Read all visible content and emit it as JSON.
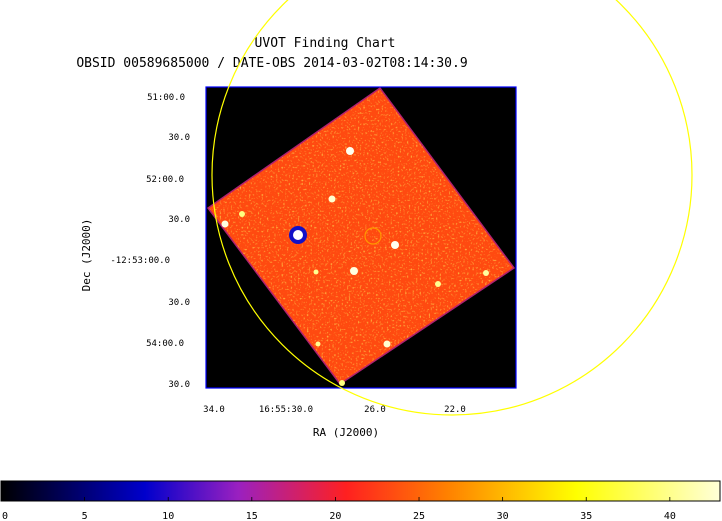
{
  "chart_data": {
    "type": "heatmap",
    "title": "UVOT Finding Chart",
    "subtitle": "OBSID 00589685000 / DATE-OBS 2014-03-02T08:14:30.9",
    "xlabel": "RA (J2000)",
    "ylabel": "Dec (J2000)",
    "x_ticks": [
      "34.0",
      "16:55:30.0",
      "26.0",
      "22.0"
    ],
    "y_ticks": [
      "51:00.0",
      "30.0",
      "52:00.0",
      "30.0",
      "-12:53:00.0",
      "30.0",
      "54:00.0",
      "30.0"
    ],
    "colorbar": {
      "min": 0,
      "max": 43,
      "ticks": [
        0,
        5,
        10,
        15,
        20,
        25,
        30,
        35,
        40
      ],
      "colormap": [
        "#000000",
        "#0000cc",
        "#c02080",
        "#ff2020",
        "#ff8000",
        "#ffff00",
        "#ffffc0"
      ]
    },
    "overlays": [
      {
        "shape": "circle",
        "color": "#ffff00",
        "label": ""
      },
      {
        "shape": "circle",
        "color": "#ff8c00",
        "label": ""
      }
    ],
    "colors": {
      "background_field": "#000000",
      "frame": "#0000ff",
      "field_mid": "#ff4a10"
    }
  }
}
